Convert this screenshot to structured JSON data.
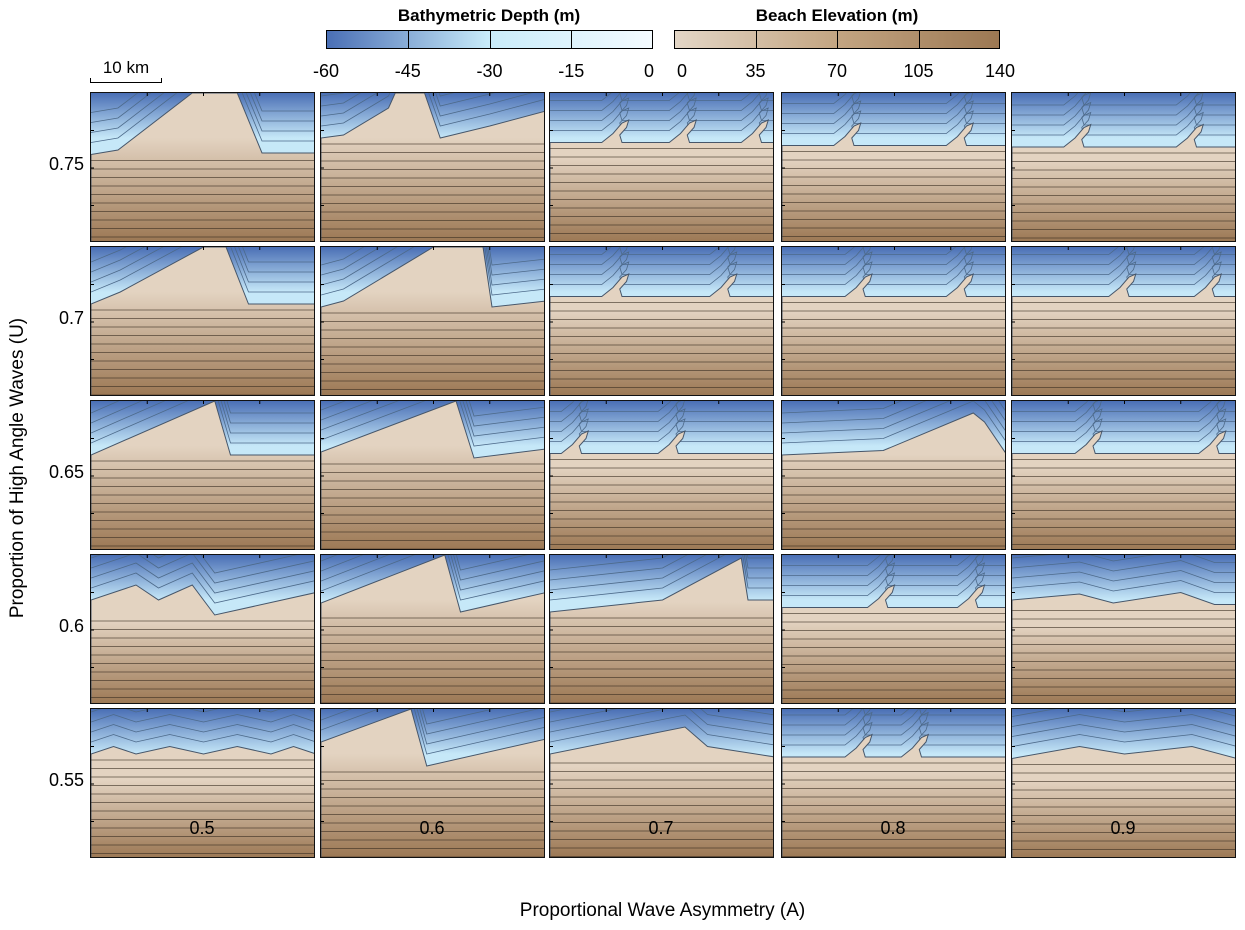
{
  "colorbars": [
    {
      "title": "Bathymetric Depth (m)",
      "ticks": [
        "-60",
        "-45",
        "-30",
        "-15",
        "0"
      ],
      "range": [
        -60,
        0
      ],
      "colors": [
        "#4a6fb5",
        "#c9ecfa",
        "#f4fbff"
      ]
    },
    {
      "title": "Beach Elevation (m)",
      "ticks": [
        "0",
        "35",
        "70",
        "105",
        "140"
      ],
      "range": [
        0,
        140
      ],
      "colors": [
        "#e3d6c6",
        "#c3a582",
        "#9c7853"
      ]
    }
  ],
  "scale_bar": {
    "label": "10 km"
  },
  "chart_data": {
    "type": "heatmap",
    "title": "",
    "xlabel": "Proportional Wave Asymmetry (A)",
    "ylabel": "Proportion of High Angle Waves (U)",
    "x_categories": [
      "0.5",
      "0.6",
      "0.7",
      "0.8",
      "0.9"
    ],
    "y_categories": [
      "0.75",
      "0.7",
      "0.65",
      "0.6",
      "0.55"
    ],
    "panel_count": 25,
    "colors": {
      "deep_water": "#4a6fb5",
      "shallow_water": "#c6e8f8",
      "beach_low": "#e3d3c1",
      "beach_high": "#9b7753",
      "contour": "#333333"
    }
  }
}
